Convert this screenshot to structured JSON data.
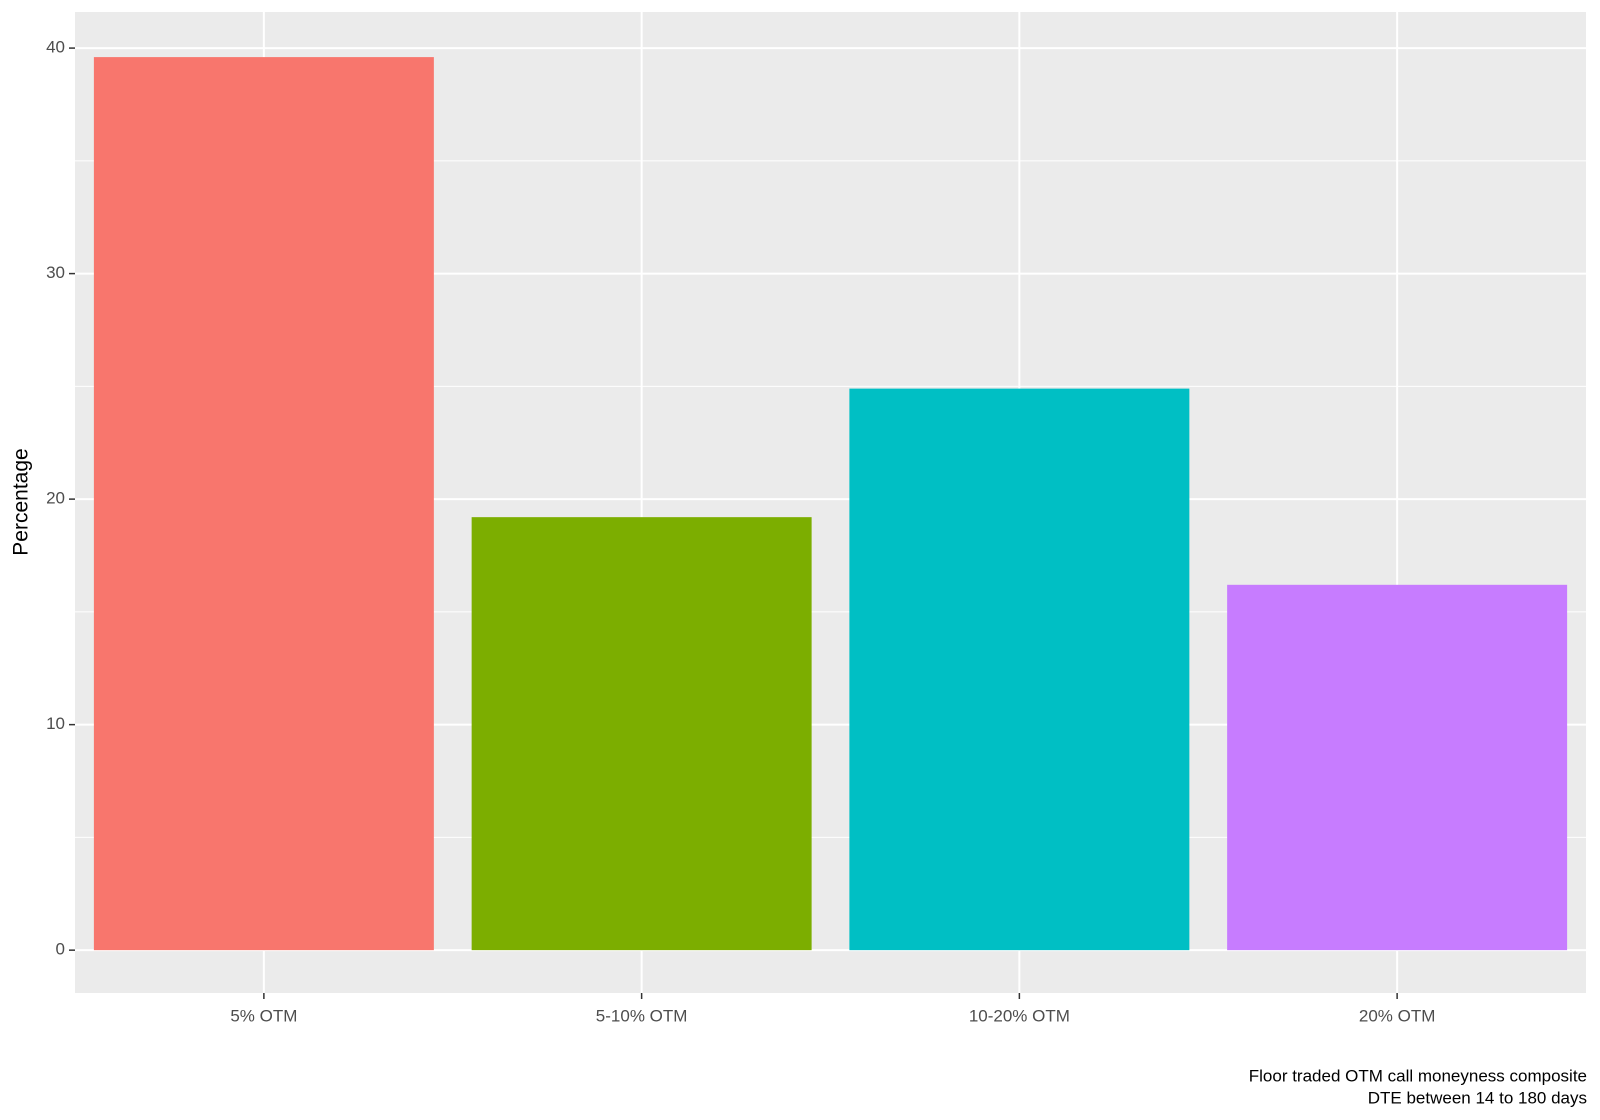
{
  "chart_data": {
    "type": "bar",
    "y_label": "Percentage",
    "categories": [
      "5% OTM",
      "5-10% OTM",
      "10-20% OTM",
      "20% OTM"
    ],
    "values": [
      39.6,
      19.2,
      24.9,
      16.2
    ],
    "colors": [
      "#f8766d",
      "#7cae00",
      "#00bfc4",
      "#c77cff"
    ],
    "ylim": [
      -1.9,
      41.6
    ],
    "yticks": [
      0,
      10,
      20,
      30,
      40
    ],
    "minor_yticks": [
      5,
      15,
      25,
      35
    ],
    "grid": true,
    "caption": [
      "Floor traded OTM call moneyness composite",
      "DTE between 14 to 180 days"
    ]
  }
}
